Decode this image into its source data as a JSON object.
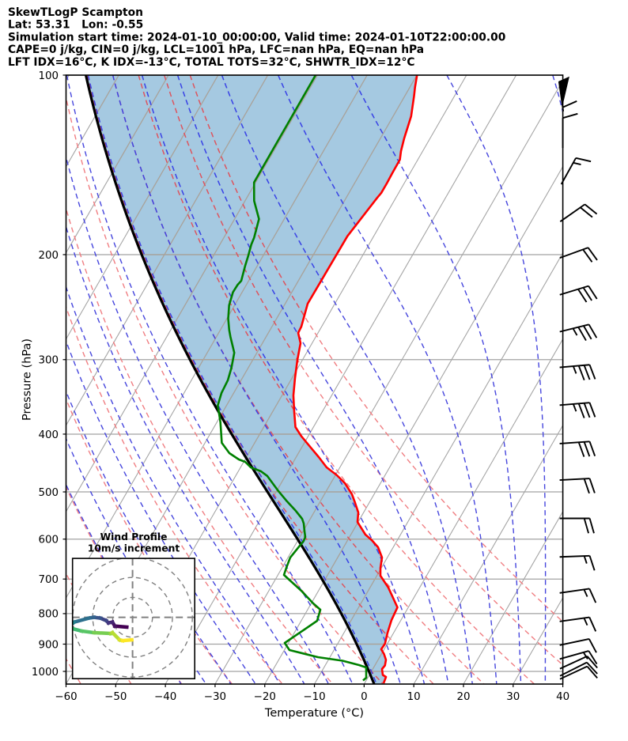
{
  "header": {
    "line1": "SkewTLogP Scampton",
    "line2": "Lat: 53.31   Lon: -0.55",
    "line3": "Simulation start time: 2024-01-10_00:00:00, Valid time: 2024-01-10T22:00:00.00",
    "line4": "CAPE=0 j/kg, CIN=0 j/kg, LCL=1001 hPa, LFC=nan hPa, EQ=nan hPa",
    "line5": "LFT IDX=16°C, K IDX=-13°C, TOTAL TOTS=32°C, SHWTR_IDX=12°C"
  },
  "chart_data": {
    "type": "skewt-logp",
    "title": "SkewTLogP Scampton",
    "xlabel": "Temperature (°C)",
    "ylabel": "Pressure (hPa)",
    "xlim": [
      -60,
      40
    ],
    "x_ticks": [
      -60,
      -50,
      -40,
      -30,
      -20,
      -10,
      0,
      10,
      20,
      30,
      40
    ],
    "pressure_ticks": [
      100,
      200,
      300,
      400,
      500,
      600,
      700,
      800,
      900,
      1000
    ],
    "pressure_top": 100,
    "pressure_bottom": 1050,
    "skew_degC_per_plotheight": 70.7,
    "isotherms": {
      "start": -130,
      "end": 40,
      "step": 10
    },
    "dry_adiabats_theta": {
      "start": -60,
      "end": 50,
      "step": 10
    },
    "moist_adiabats_thetaw": {
      "start": -40,
      "end": 40,
      "step": 5
    },
    "parcel_thetaw": -0.5,
    "temperature_profile": [
      [
        100.0,
        -59.96
      ],
      [
        104.7,
        -58.98
      ],
      [
        108.3,
        -58.16
      ],
      [
        117.2,
        -56.38
      ],
      [
        127.7,
        -55.21
      ],
      [
        134.1,
        -54.38
      ],
      [
        138.6,
        -53.61
      ],
      [
        146.0,
        -53.57
      ],
      [
        151.9,
        -53.49
      ],
      [
        157.6,
        -53.5
      ],
      [
        160.5,
        -53.75
      ],
      [
        186.2,
        -55.3
      ],
      [
        241.7,
        -55.47
      ],
      [
        264.1,
        -54.09
      ],
      [
        270.6,
        -53.99
      ],
      [
        281.6,
        -52.32
      ],
      [
        300.2,
        -51.03
      ],
      [
        322.1,
        -49.4
      ],
      [
        344.5,
        -47.7
      ],
      [
        366.2,
        -45.71
      ],
      [
        389.2,
        -43.63
      ],
      [
        403.2,
        -41.38
      ],
      [
        421.4,
        -38.14
      ],
      [
        437.1,
        -35.45
      ],
      [
        454.8,
        -32.67
      ],
      [
        468.9,
        -29.68
      ],
      [
        483.4,
        -27.17
      ],
      [
        504.6,
        -24.45
      ],
      [
        521.8,
        -22.81
      ],
      [
        541.3,
        -21.07
      ],
      [
        561.5,
        -20.13
      ],
      [
        589.6,
        -17.07
      ],
      [
        602.3,
        -15.16
      ],
      [
        619.1,
        -13.06
      ],
      [
        644.2,
        -11.07
      ],
      [
        670.3,
        -10.19
      ],
      [
        691.1,
        -9.28
      ],
      [
        723.5,
        -6.31
      ],
      [
        752.8,
        -4.16
      ],
      [
        780.9,
        -2.19
      ],
      [
        820.0,
        -1.91
      ],
      [
        861.0,
        -1.24
      ],
      [
        898.6,
        -0.48
      ],
      [
        918.0,
        -0.59
      ],
      [
        935.0,
        0.52
      ],
      [
        956.4,
        1.59
      ],
      [
        977.4,
        2.04
      ],
      [
        990.9,
        1.86
      ],
      [
        1013.8,
        2.71
      ],
      [
        1021.6,
        3.58
      ],
      [
        1046.9,
        3.83
      ]
    ],
    "dewpoint_profile": [
      [
        100.0,
        -80.38
      ],
      [
        151.3,
        -80.33
      ],
      [
        162.5,
        -78.17
      ],
      [
        174.3,
        -75.09
      ],
      [
        187.3,
        -73.91
      ],
      [
        192.2,
        -73.69
      ],
      [
        200.6,
        -73.01
      ],
      [
        208.8,
        -72.45
      ],
      [
        221.2,
        -71.5
      ],
      [
        224.6,
        -71.76
      ],
      [
        231.3,
        -71.84
      ],
      [
        243.2,
        -71.1
      ],
      [
        256.1,
        -69.73
      ],
      [
        267.3,
        -68.25
      ],
      [
        274.8,
        -67.16
      ],
      [
        292.1,
        -64.56
      ],
      [
        309.5,
        -63.39
      ],
      [
        325.0,
        -62.66
      ],
      [
        341.3,
        -62.46
      ],
      [
        358.1,
        -61.77
      ],
      [
        369.5,
        -60.56
      ],
      [
        382.1,
        -59.28
      ],
      [
        413.7,
        -56.62
      ],
      [
        430.5,
        -53.9
      ],
      [
        441.1,
        -51.26
      ],
      [
        445.2,
        -49.71
      ],
      [
        454.8,
        -47.95
      ],
      [
        461.8,
        -45.42
      ],
      [
        470.3,
        -43.6
      ],
      [
        498.4,
        -39.63
      ],
      [
        517.0,
        -36.94
      ],
      [
        538.0,
        -33.83
      ],
      [
        554.7,
        -31.64
      ],
      [
        564.9,
        -30.77
      ],
      [
        582.4,
        -29.7
      ],
      [
        595.0,
        -28.9
      ],
      [
        604.2,
        -28.76
      ],
      [
        615.4,
        -29.0
      ],
      [
        644.2,
        -29.54
      ],
      [
        670.3,
        -29.14
      ],
      [
        689.0,
        -28.79
      ],
      [
        732.4,
        -23.46
      ],
      [
        769.0,
        -19.6
      ],
      [
        788.0,
        -17.43
      ],
      [
        822.5,
        -16.79
      ],
      [
        895.9,
        -20.75
      ],
      [
        920.9,
        -18.97
      ],
      [
        946.5,
        -12.41
      ],
      [
        959.6,
        -7.06
      ],
      [
        975.9,
        -3.21
      ],
      [
        984.8,
        -1.51
      ],
      [
        1024.7,
        -0.31
      ],
      [
        1035.7,
        -0.63
      ]
    ],
    "wind_barbs": {
      "units": "m/s",
      "increments": {
        "half": 5,
        "full": 10,
        "flag": 50
      },
      "levels": [
        [
          113.6,
          60,
          98
        ],
        [
          130.9,
          10,
          90
        ],
        [
          150.8,
          15,
          61
        ],
        [
          174.8,
          20,
          35
        ],
        [
          201.7,
          20,
          20
        ],
        [
          232.7,
          30,
          17
        ],
        [
          268.6,
          35,
          14
        ],
        [
          308.8,
          35,
          5
        ],
        [
          357.3,
          35,
          4.8
        ],
        [
          414.6,
          30,
          4
        ],
        [
          477.3,
          20,
          3
        ],
        [
          553.8,
          20,
          0
        ],
        [
          642.4,
          15,
          2.2
        ],
        [
          737.5,
          15,
          8.3
        ],
        [
          823.2,
          15,
          8
        ],
        [
          901.4,
          10,
          12
        ],
        [
          950.0,
          15,
          15.6
        ],
        [
          984.8,
          10,
          24.8
        ],
        [
          1012.0,
          10,
          26.7
        ],
        [
          1024.7,
          10,
          25
        ]
      ]
    },
    "hodograph": {
      "title_line1": "Wind Profile",
      "title_line2": "10m/s increment",
      "ring_interval_ms": 10,
      "rings_ms": [
        10,
        20,
        30
      ],
      "trace_uv_ms": [
        [
          -2.9,
          -4.9
        ],
        [
          -8.9,
          -4.4
        ],
        [
          -10.1,
          -2.4
        ],
        [
          -12.1,
          -2.8
        ],
        [
          -13.3,
          -1.6
        ],
        [
          -16.2,
          -0.4
        ],
        [
          -19.4,
          0.0
        ],
        [
          -21.9,
          -0.4
        ],
        [
          -29.2,
          -2.4
        ],
        [
          -30.1,
          -2.9
        ],
        [
          -46.7,
          -3.5
        ],
        [
          -57.0,
          -4.3
        ],
        [
          -46.7,
          -5.1
        ],
        [
          -30.1,
          -5.7
        ],
        [
          -25.5,
          -6.9
        ],
        [
          -19.4,
          -7.7
        ],
        [
          -11.0,
          -8.1
        ],
        [
          -10.1,
          -7.7
        ],
        [
          -6.5,
          -11.3
        ],
        [
          -4.9,
          -11.7
        ],
        [
          -0.4,
          -11.3
        ]
      ]
    },
    "colors": {
      "temperature": "#ff0000",
      "dewpoint": "#008000",
      "parcel": "#000000",
      "cape_fill": "rgba(31,119,180,0.4)",
      "isobar": "#a2a2a2",
      "grid_over_fill": "#b0a396",
      "isotherm": "#a5a5a5",
      "dry_adiabat": "#f07e82",
      "dry_adiabat_in_fill": "#d95560",
      "moist_adiabat": "#4646dd",
      "moist_adiabat_in_fill": "#3b46e6",
      "hodo_grid": "#808080",
      "viridis": [
        "#440154",
        "#46327e",
        "#365c8d",
        "#277f8e",
        "#1fa187",
        "#4ac16d",
        "#a0da39",
        "#fde725"
      ]
    }
  }
}
